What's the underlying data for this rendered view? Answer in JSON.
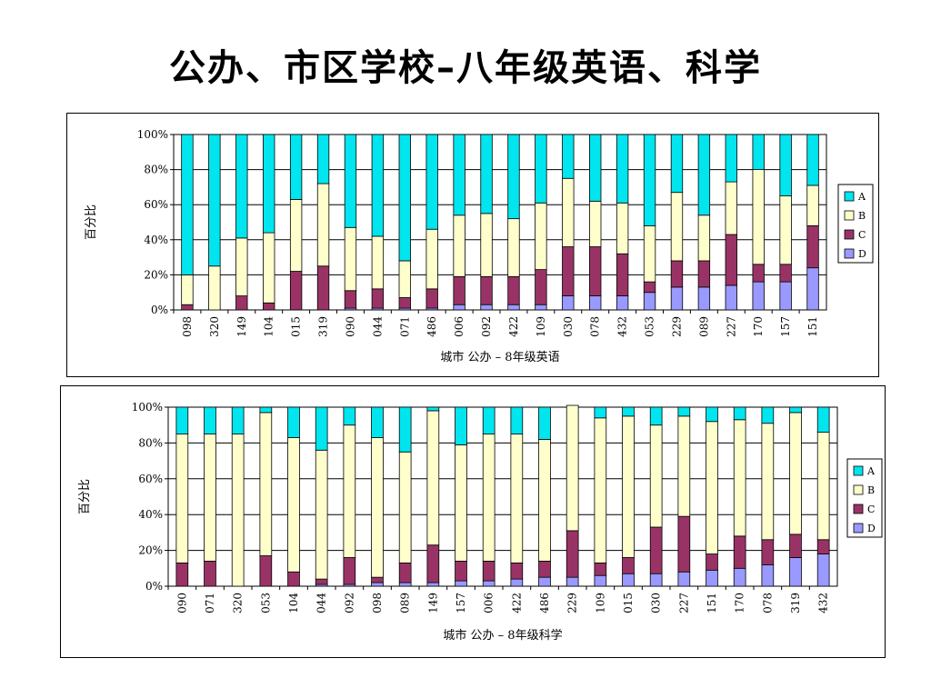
{
  "slide": {
    "title": "公办、市区学校–八年级英语、科学"
  },
  "colors": {
    "A": "#00E5EE",
    "B": "#FFFFCC",
    "C": "#993366",
    "D": "#9999FF"
  },
  "chart_data": [
    {
      "type": "bar",
      "stacked": true,
      "ylabel": "百分比",
      "xlabel": "城市 公办 – 8年级英语",
      "yticks": [
        "0%",
        "20%",
        "40%",
        "60%",
        "80%",
        "100%"
      ],
      "ylim": [
        0,
        100
      ],
      "legend": [
        "A",
        "B",
        "C",
        "D"
      ],
      "legend_position": "right",
      "categories": [
        "098",
        "320",
        "149",
        "104",
        "015",
        "319",
        "090",
        "044",
        "071",
        "486",
        "006",
        "092",
        "422",
        "109",
        "030",
        "078",
        "432",
        "053",
        "229",
        "089",
        "227",
        "170",
        "157",
        "151"
      ],
      "series": [
        {
          "name": "D",
          "values": [
            0,
            0,
            0,
            0,
            0,
            0,
            1,
            1,
            1,
            1,
            3,
            3,
            3,
            3,
            8,
            8,
            8,
            10,
            13,
            13,
            14,
            16,
            16,
            24
          ]
        },
        {
          "name": "C",
          "values": [
            3,
            0,
            8,
            4,
            22,
            25,
            10,
            11,
            6,
            11,
            16,
            16,
            16,
            20,
            28,
            28,
            24,
            6,
            15,
            15,
            29,
            10,
            10,
            24
          ]
        },
        {
          "name": "B",
          "values": [
            17,
            25,
            33,
            40,
            41,
            47,
            36,
            30,
            21,
            34,
            35,
            36,
            33,
            38,
            39,
            26,
            29,
            32,
            39,
            26,
            30,
            54,
            39,
            23
          ]
        },
        {
          "name": "A",
          "values": [
            80,
            75,
            59,
            56,
            37,
            28,
            53,
            58,
            72,
            54,
            46,
            45,
            48,
            39,
            25,
            38,
            39,
            52,
            33,
            46,
            27,
            20,
            35,
            29
          ]
        }
      ]
    },
    {
      "type": "bar",
      "stacked": true,
      "ylabel": "百分比",
      "xlabel": "城市 公办 – 8年级科学",
      "yticks": [
        "0%",
        "20%",
        "40%",
        "60%",
        "80%",
        "100%"
      ],
      "ylim": [
        0,
        100
      ],
      "legend": [
        "A",
        "B",
        "C",
        "D"
      ],
      "legend_position": "right",
      "categories": [
        "090",
        "071",
        "320",
        "053",
        "104",
        "044",
        "092",
        "098",
        "089",
        "149",
        "157",
        "006",
        "422",
        "486",
        "229",
        "109",
        "015",
        "030",
        "227",
        "151",
        "170",
        "078",
        "319",
        "432"
      ],
      "series": [
        {
          "name": "D",
          "values": [
            0,
            0,
            0,
            0,
            0,
            1,
            1,
            2,
            2,
            2,
            3,
            3,
            4,
            5,
            5,
            6,
            7,
            7,
            8,
            9,
            10,
            12,
            16,
            18
          ]
        },
        {
          "name": "C",
          "values": [
            13,
            14,
            0,
            17,
            8,
            3,
            15,
            3,
            11,
            21,
            11,
            11,
            9,
            9,
            26,
            7,
            9,
            26,
            31,
            9,
            18,
            14,
            13,
            8
          ]
        },
        {
          "name": "B",
          "values": [
            72,
            71,
            85,
            80,
            75,
            72,
            74,
            78,
            62,
            75,
            65,
            71,
            72,
            68,
            70,
            81,
            79,
            57,
            56,
            74,
            65,
            65,
            68,
            60
          ]
        },
        {
          "name": "A",
          "values": [
            15,
            15,
            15,
            3,
            17,
            24,
            10,
            17,
            25,
            2,
            21,
            15,
            15,
            18,
            0,
            6,
            5,
            10,
            5,
            8,
            7,
            9,
            3,
            14
          ]
        }
      ]
    }
  ]
}
